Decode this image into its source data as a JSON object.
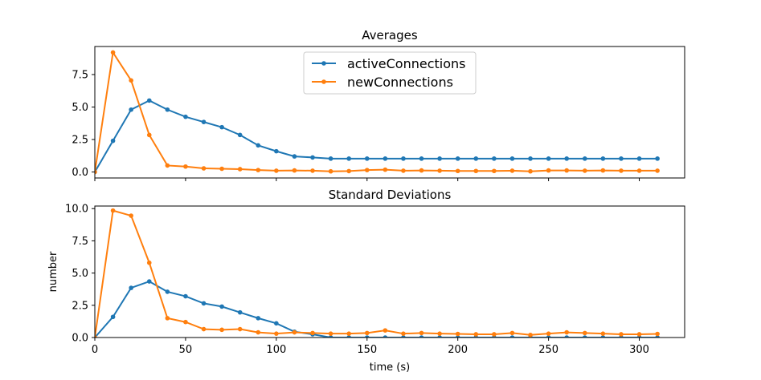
{
  "chart_data": [
    {
      "type": "line",
      "title": "Averages",
      "xlabel": "",
      "ylabel": "",
      "xlim": [
        0,
        325
      ],
      "ylim": [
        -0.46,
        9.66
      ],
      "x_ticks": [
        0,
        50,
        100,
        150,
        200,
        250,
        300
      ],
      "x_tick_labels_visible": false,
      "y_ticks": [
        0.0,
        2.5,
        5.0,
        7.5
      ],
      "y_tick_labels": [
        "0.0",
        "2.5",
        "5.0",
        "7.5"
      ],
      "grid": false,
      "legend": {
        "position": "upper-center",
        "entries": [
          "activeConnections",
          "newConnections"
        ]
      },
      "x": [
        0,
        10,
        20,
        30,
        40,
        50,
        60,
        70,
        80,
        90,
        100,
        110,
        120,
        130,
        140,
        150,
        160,
        170,
        180,
        190,
        200,
        210,
        220,
        230,
        240,
        250,
        260,
        270,
        280,
        290,
        300,
        310
      ],
      "series": [
        {
          "name": "activeConnections",
          "color": "#1f77b4",
          "values": [
            0.0,
            2.4,
            4.8,
            5.5,
            4.8,
            4.25,
            3.85,
            3.45,
            2.85,
            2.05,
            1.6,
            1.2,
            1.12,
            1.03,
            1.03,
            1.03,
            1.03,
            1.03,
            1.03,
            1.03,
            1.03,
            1.03,
            1.03,
            1.03,
            1.03,
            1.03,
            1.03,
            1.03,
            1.03,
            1.03,
            1.03,
            1.03
          ]
        },
        {
          "name": "newConnections",
          "color": "#ff7f0e",
          "values": [
            0.0,
            9.2,
            7.05,
            2.85,
            0.5,
            0.42,
            0.28,
            0.25,
            0.22,
            0.15,
            0.1,
            0.12,
            0.1,
            0.05,
            0.07,
            0.15,
            0.18,
            0.1,
            0.12,
            0.1,
            0.08,
            0.08,
            0.08,
            0.1,
            0.05,
            0.12,
            0.12,
            0.1,
            0.12,
            0.1,
            0.1,
            0.1
          ]
        }
      ]
    },
    {
      "type": "line",
      "title": "Standard Deviations",
      "xlabel": "time (s)",
      "ylabel": "number",
      "xlim": [
        0,
        325
      ],
      "ylim": [
        0,
        10.2
      ],
      "x_ticks": [
        0,
        50,
        100,
        150,
        200,
        250,
        300
      ],
      "x_tick_labels": [
        "0",
        "50",
        "100",
        "150",
        "200",
        "250",
        "300"
      ],
      "y_ticks": [
        0.0,
        2.5,
        5.0,
        7.5,
        10.0
      ],
      "y_tick_labels": [
        "0.0",
        "2.5",
        "5.0",
        "7.5",
        "10.0"
      ],
      "grid": false,
      "x": [
        0,
        10,
        20,
        30,
        40,
        50,
        60,
        70,
        80,
        90,
        100,
        110,
        120,
        130,
        140,
        150,
        160,
        170,
        180,
        190,
        200,
        210,
        220,
        230,
        240,
        250,
        260,
        270,
        280,
        290,
        300,
        310
      ],
      "series": [
        {
          "name": "activeConnections",
          "color": "#1f77b4",
          "values": [
            0.0,
            1.6,
            3.85,
            4.35,
            3.55,
            3.2,
            2.65,
            2.4,
            1.95,
            1.5,
            1.1,
            0.45,
            0.25,
            0.0,
            0.0,
            0.0,
            0.0,
            0.0,
            0.0,
            0.0,
            0.0,
            0.0,
            0.0,
            0.0,
            0.0,
            0.0,
            0.0,
            0.0,
            0.0,
            0.0,
            0.0,
            0.0
          ]
        },
        {
          "name": "newConnections",
          "color": "#ff7f0e",
          "values": [
            0.0,
            9.85,
            9.45,
            5.8,
            1.5,
            1.2,
            0.65,
            0.6,
            0.65,
            0.4,
            0.3,
            0.4,
            0.35,
            0.3,
            0.3,
            0.35,
            0.55,
            0.3,
            0.35,
            0.3,
            0.28,
            0.25,
            0.25,
            0.35,
            0.2,
            0.3,
            0.4,
            0.35,
            0.3,
            0.25,
            0.25,
            0.28
          ]
        }
      ]
    }
  ]
}
